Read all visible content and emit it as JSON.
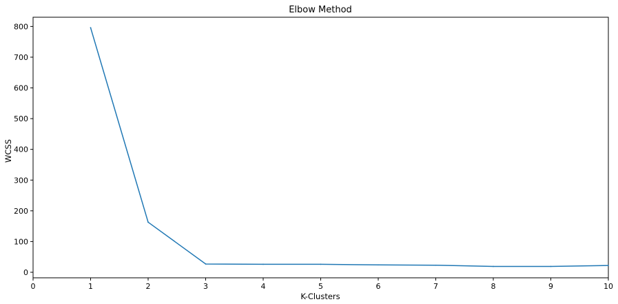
{
  "chart_data": {
    "type": "line",
    "title": "Elbow Method",
    "xlabel": "K-Clusters",
    "ylabel": "WCSS",
    "xlim": [
      0,
      10
    ],
    "ylim": [
      -18,
      830
    ],
    "xticks": [
      0,
      1,
      2,
      3,
      4,
      5,
      6,
      7,
      8,
      9,
      10
    ],
    "yticks": [
      0,
      100,
      200,
      300,
      400,
      500,
      600,
      700,
      800
    ],
    "grid": false,
    "series": [
      {
        "color": "#1f77b4",
        "x": [
          1,
          2,
          3,
          4,
          5,
          6,
          7,
          8,
          9,
          10
        ],
        "y": [
          796,
          163,
          27,
          26,
          26,
          24,
          23,
          19,
          19,
          22
        ]
      }
    ]
  }
}
